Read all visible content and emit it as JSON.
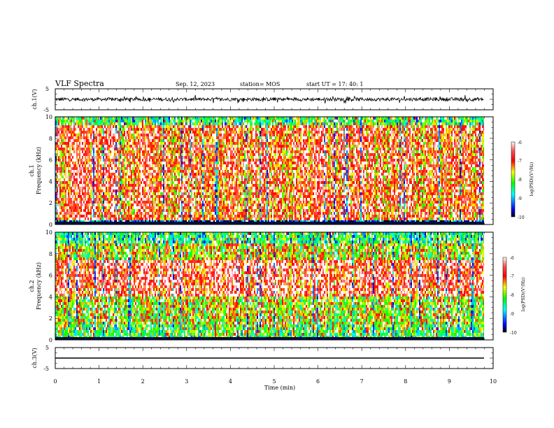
{
  "header": {
    "title": "VLF Spectra",
    "date": "Sep. 12, 2023",
    "station": "station= MOS",
    "start": "start  UT =   17: 40: 1"
  },
  "chart_data": {
    "type": "heatmap",
    "xlabel": "Time  (min)",
    "xlim": [
      0,
      10
    ],
    "xticks": [
      "0",
      "1",
      "2",
      "3",
      "4",
      "5",
      "6",
      "7",
      "8",
      "9",
      "10"
    ],
    "panels": [
      {
        "id": "ch1_volt",
        "type": "line",
        "ylabel": "ch.1(V)",
        "ylim": [
          -5,
          5
        ],
        "yticks": [
          "5",
          "-5"
        ],
        "level": 0
      },
      {
        "id": "ch1_spec",
        "type": "heatmap",
        "ylabel_top": "ch.1",
        "ylabel": "Frequency  (kHz)",
        "ylim": [
          0,
          10
        ],
        "yticks": [
          "0",
          "2",
          "4",
          "6",
          "8",
          "10"
        ],
        "colorbar": {
          "label": "log(PSD)(V²/Hz)",
          "ticks": [
            "-6",
            "-7",
            "-8",
            "-9",
            "-10"
          ],
          "range": [
            -10,
            -6
          ]
        }
      },
      {
        "id": "ch2_spec",
        "type": "heatmap",
        "ylabel_top": "ch.2",
        "ylabel": "Frequency  (kHz)",
        "ylim": [
          0,
          10
        ],
        "yticks": [
          "0",
          "2",
          "4",
          "6",
          "8",
          "10"
        ],
        "colorbar": {
          "label": "log(PSD)(V²/Hz)",
          "ticks": [
            "-6",
            "-7",
            "-8",
            "-9",
            "-10"
          ],
          "range": [
            -10,
            -6
          ]
        }
      },
      {
        "id": "ch3_volt",
        "type": "line",
        "ylabel": "ch.3(V)",
        "ylim": [
          -5,
          5
        ],
        "yticks": [
          "5",
          "-5"
        ],
        "level": 0
      }
    ]
  }
}
